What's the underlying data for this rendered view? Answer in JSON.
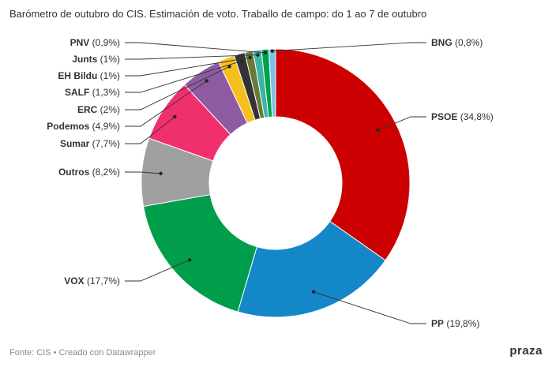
{
  "title": "Barómetro de outubro do CIS. Estimación de voto. Traballo de campo: do 1 ao 7 de outubro",
  "footer": "Fonte: CIS • Creado con Datawrapper",
  "logo": "praza",
  "chart_data": {
    "type": "pie",
    "donut": true,
    "title": "Barómetro de outubro do CIS. Estimación de voto. Traballo de campo: do 1 ao 7 de outubro",
    "slices": [
      {
        "label": "PSOE",
        "value": 34.8,
        "display": "34,8%",
        "color": "#cc0000"
      },
      {
        "label": "PP",
        "value": 19.8,
        "display": "19,8%",
        "color": "#1487c9"
      },
      {
        "label": "VOX",
        "value": 17.7,
        "display": "17,7%",
        "color": "#009e4a"
      },
      {
        "label": "Outros",
        "value": 8.2,
        "display": "8,2%",
        "color": "#a0a0a0"
      },
      {
        "label": "Sumar",
        "value": 7.7,
        "display": "7,7%",
        "color": "#f0306c"
      },
      {
        "label": "Podemos",
        "value": 4.9,
        "display": "4,9%",
        "color": "#8e5ba3"
      },
      {
        "label": "ERC",
        "value": 2.0,
        "display": "2%",
        "color": "#f5bf1d"
      },
      {
        "label": "SALF",
        "value": 1.3,
        "display": "1,3%",
        "color": "#333333"
      },
      {
        "label": "EH Bildu",
        "value": 1.0,
        "display": "1%",
        "color": "#6a7b38"
      },
      {
        "label": "Junts",
        "value": 1.0,
        "display": "1%",
        "color": "#3cb4a8"
      },
      {
        "label": "PNV",
        "value": 0.9,
        "display": "0,9%",
        "color": "#00a04e"
      },
      {
        "label": "BNG",
        "value": 0.8,
        "display": "0,8%",
        "color": "#79c4e8"
      }
    ]
  }
}
